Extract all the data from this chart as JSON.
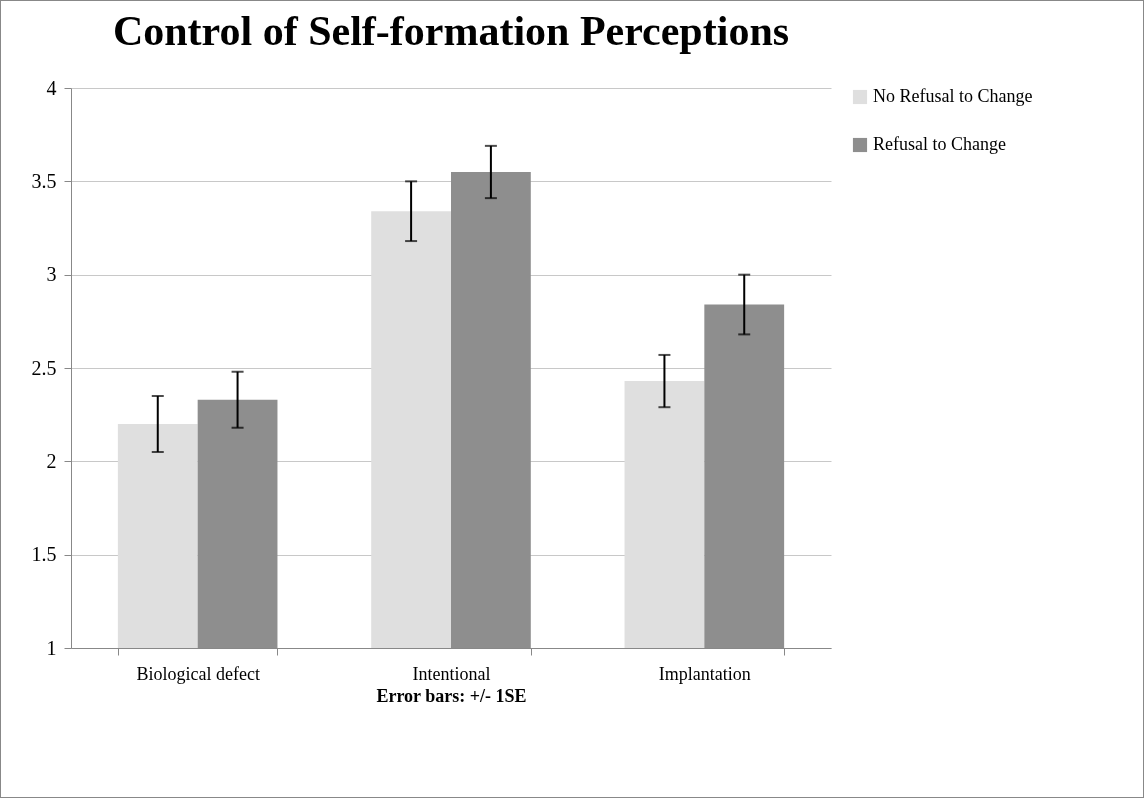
{
  "chart_data": {
    "type": "bar",
    "title": "Control of Self-formation Perceptions",
    "xlabel": "Error bars: +/- 1SE",
    "categories": [
      "Biological defect",
      "Intentional",
      "Implantation"
    ],
    "series": [
      {
        "name": "No Refusal to Change",
        "color": "#dfdfdf",
        "values": [
          2.2,
          3.34,
          2.43
        ],
        "errors": [
          0.15,
          0.16,
          0.14
        ]
      },
      {
        "name": "Refusal to Change",
        "color": "#8e8e8e",
        "values": [
          2.33,
          3.55,
          2.84
        ],
        "errors": [
          0.15,
          0.14,
          0.16
        ]
      }
    ],
    "ylim": [
      1,
      4
    ],
    "yticks": [
      1,
      1.5,
      2,
      2.5,
      3,
      3.5,
      4
    ],
    "grid": "y",
    "legend": "right"
  }
}
